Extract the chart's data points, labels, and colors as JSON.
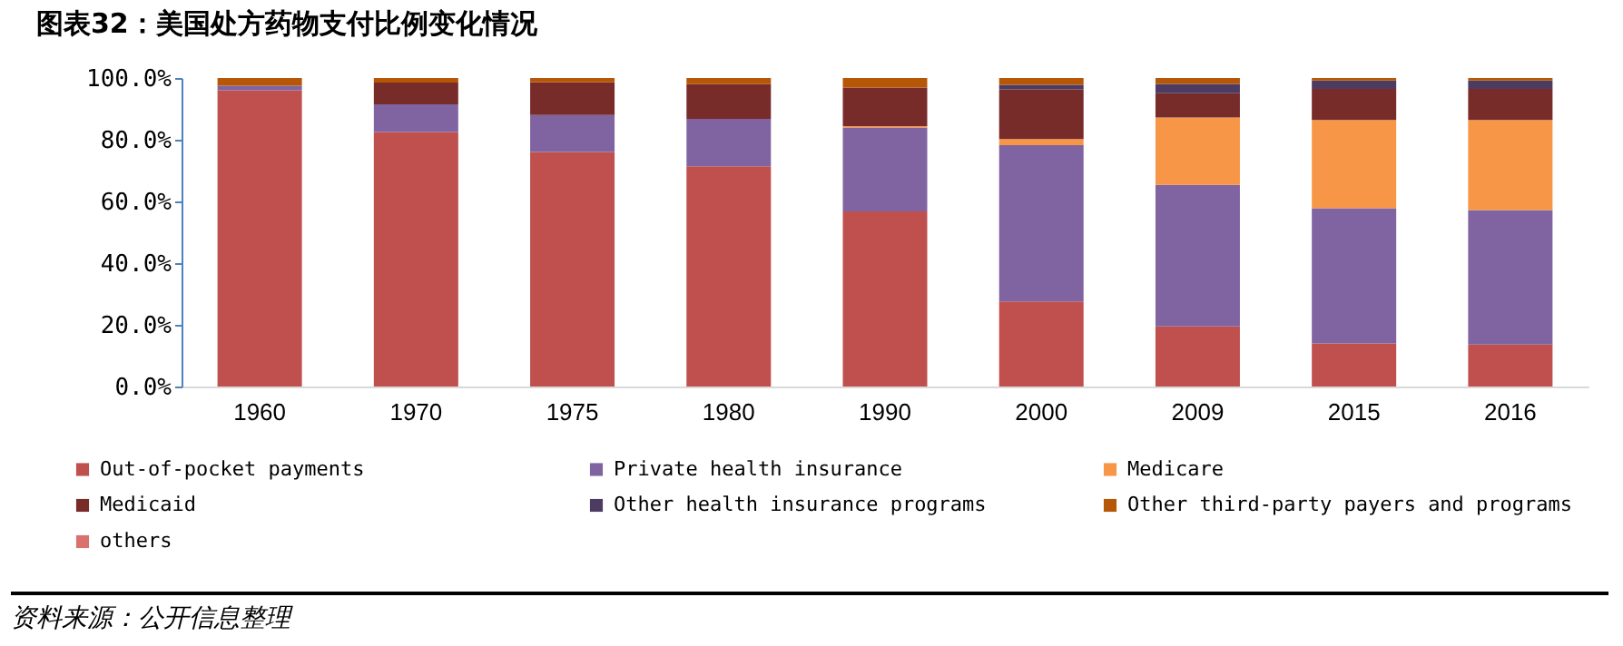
{
  "chart_data": {
    "type": "bar",
    "stacked": true,
    "title": "图表32：美国处方药物支付比例变化情况",
    "categories": [
      "1960",
      "1970",
      "1975",
      "1980",
      "1990",
      "2000",
      "2009",
      "2015",
      "2016"
    ],
    "series": [
      {
        "name": "Out-of-pocket payments",
        "color": "#c0504d",
        "values": [
          96,
          82.5,
          76,
          71.4,
          56.8,
          27.6,
          19.5,
          14,
          13.6
        ]
      },
      {
        "name": "Private health insurance",
        "color": "#8064a2",
        "values": [
          1.5,
          9,
          12,
          15.4,
          27.2,
          50.6,
          45.9,
          43.8,
          43.6
        ]
      },
      {
        "name": "Medicare",
        "color": "#f79646",
        "values": [
          0,
          0,
          0,
          0,
          0.4,
          2,
          21.8,
          28.6,
          29.2
        ]
      },
      {
        "name": "Medicaid",
        "color": "#772c2a",
        "values": [
          0,
          7,
          10.6,
          11.2,
          12.5,
          16.1,
          7.9,
          10.1,
          10.1
        ]
      },
      {
        "name": "Other health insurance programs",
        "color": "#4d3b62",
        "values": [
          0,
          0,
          0,
          0,
          0,
          1.5,
          3,
          2.7,
          2.7
        ]
      },
      {
        "name": "Other third-party payers and programs",
        "color": "#b65708",
        "values": [
          2.5,
          1.5,
          1.4,
          2,
          3.1,
          2.2,
          1.9,
          0.8,
          0.8
        ]
      },
      {
        "name": "others",
        "color": "#d9716e",
        "values": [
          0,
          0,
          0,
          0,
          0,
          0,
          0,
          0,
          0
        ]
      }
    ],
    "ylim": [
      0,
      100
    ],
    "yticks": [
      {
        "value": 0,
        "label": "0.0%"
      },
      {
        "value": 20,
        "label": "20.0%"
      },
      {
        "value": 40,
        "label": "40.0%"
      },
      {
        "value": 60,
        "label": "60.0%"
      },
      {
        "value": 80,
        "label": "80.0%"
      },
      {
        "value": 100,
        "label": "100.0%"
      }
    ],
    "grid": false,
    "legend": "bottom",
    "annotations": [
      "资料来源：公开信息整理"
    ]
  }
}
